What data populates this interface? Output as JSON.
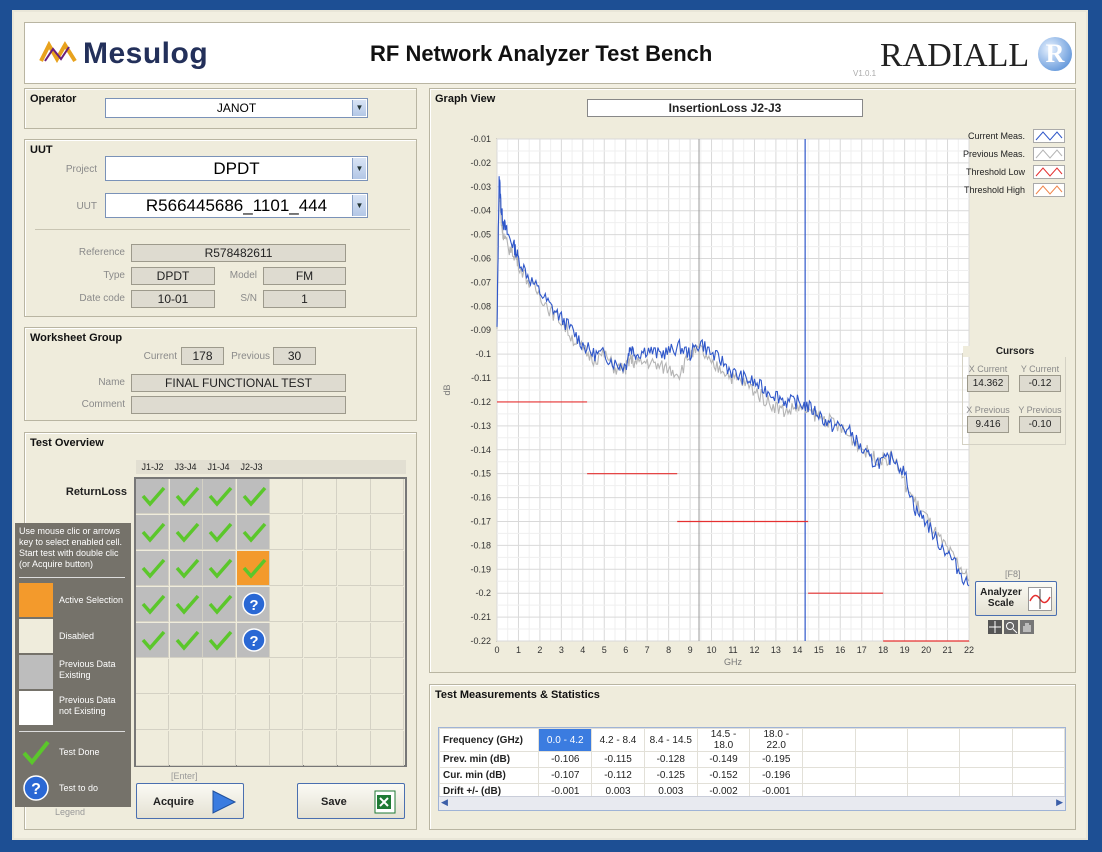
{
  "header": {
    "logo_text": "Mesulog",
    "title": "RF Network Analyzer Test Bench",
    "brand": "RADIALL",
    "brand_mark": "R",
    "version": "V1.0.1"
  },
  "operator": {
    "title": "Operator",
    "value": "JANOT"
  },
  "uut": {
    "title": "UUT",
    "project_label": "Project",
    "project_value": "DPDT",
    "uut_label": "UUT",
    "uut_value": "R566445686_1101_444",
    "reference_label": "Reference",
    "reference_value": "R578482611",
    "type_label": "Type",
    "type_value": "DPDT",
    "model_label": "Model",
    "model_value": "FM",
    "datecode_label": "Date code",
    "datecode_value": "10-01",
    "sn_label": "S/N",
    "sn_value": "1"
  },
  "worksheet": {
    "title": "Worksheet Group",
    "current_label": "Current",
    "current_value": "178",
    "previous_label": "Previous",
    "previous_value": "30",
    "name_label": "Name",
    "name_value": "FINAL FUNCTIONAL TEST",
    "comment_label": "Comment",
    "comment_value": ""
  },
  "overview": {
    "title": "Test Overview",
    "columns": [
      "J1-J2",
      "J3-J4",
      "J1-J4",
      "J2-J3"
    ],
    "row_label": "ReturnLoss",
    "help": "Use mouse clic or arrows key to select enabled cell. Start test with double clic (or Acquire button)",
    "legend": [
      "Active Selection",
      "Disabled",
      "Previous Data Existing",
      "Previous Data not Existing",
      "Test Done",
      "Test to do"
    ],
    "legend_label": "Legend",
    "acquire_hint": "[Enter]",
    "acquire_label": "Acquire",
    "save_label": "Save"
  },
  "graph": {
    "title": "Graph View",
    "name": "InsertionLoss J2-J3",
    "legend": [
      "Current Meas.",
      "Previous Meas.",
      "Threshold Low",
      "Threshold High"
    ],
    "cursors_title": "Cursors",
    "x_current_label": "X Current",
    "x_current": "14.362",
    "y_current_label": "Y Current",
    "y_current": "-0.12",
    "x_previous_label": "X Previous",
    "x_previous": "9.416",
    "y_previous_label": "Y Previous",
    "y_previous": "-0.10",
    "scale_hint": "[F8]",
    "scale_label": "Analyzer Scale",
    "colors": {
      "current": "#2f57c9",
      "previous": "#b5b5b5",
      "threshold": "#e53030",
      "cursor_x": "#2f57c9",
      "cursor_prev": "#9a9a9a"
    }
  },
  "chart_data": {
    "type": "line",
    "title": "InsertionLoss J2-J3",
    "xlabel": "GHz",
    "ylabel": "dB",
    "xlim": [
      0,
      22
    ],
    "ylim": [
      -0.22,
      -0.01
    ],
    "x_ticks": [
      0,
      1,
      2,
      3,
      4,
      5,
      6,
      7,
      8,
      9,
      10,
      11,
      12,
      13,
      14,
      15,
      16,
      17,
      18,
      19,
      20,
      21,
      22
    ],
    "y_ticks": [
      -0.01,
      -0.02,
      -0.03,
      -0.04,
      -0.05,
      -0.06,
      -0.07,
      -0.08,
      -0.09,
      -0.1,
      -0.11,
      -0.12,
      -0.13,
      -0.14,
      -0.15,
      -0.16,
      -0.17,
      -0.18,
      -0.19,
      -0.2,
      -0.21,
      -0.22
    ],
    "grid": true,
    "series": [
      {
        "name": "Current Meas.",
        "x": [
          0,
          0.1,
          0.2,
          0.3,
          0.5,
          0.8,
          1,
          1.5,
          2,
          2.5,
          3,
          3.5,
          4,
          4.5,
          5,
          5.5,
          6,
          6.2,
          6.5,
          7,
          7.5,
          8,
          8.5,
          9,
          9.5,
          10,
          10.5,
          11,
          11.5,
          12,
          12.5,
          13,
          13.5,
          14,
          14.5,
          15,
          15.5,
          16,
          16.5,
          17,
          17.5,
          18,
          18.5,
          19,
          19.5,
          20,
          20.5,
          21,
          21.5,
          22
        ],
        "y": [
          -0.09,
          -0.025,
          -0.04,
          -0.045,
          -0.05,
          -0.055,
          -0.06,
          -0.068,
          -0.074,
          -0.08,
          -0.085,
          -0.09,
          -0.096,
          -0.1,
          -0.1,
          -0.104,
          -0.105,
          -0.097,
          -0.1,
          -0.098,
          -0.1,
          -0.099,
          -0.097,
          -0.1,
          -0.095,
          -0.1,
          -0.103,
          -0.108,
          -0.11,
          -0.112,
          -0.115,
          -0.117,
          -0.12,
          -0.12,
          -0.122,
          -0.125,
          -0.13,
          -0.13,
          -0.133,
          -0.14,
          -0.145,
          -0.145,
          -0.143,
          -0.15,
          -0.165,
          -0.17,
          -0.178,
          -0.183,
          -0.19,
          -0.197
        ]
      },
      {
        "name": "Previous Meas.",
        "x": [
          0,
          0.1,
          0.2,
          0.3,
          0.5,
          0.8,
          1,
          1.5,
          2,
          2.5,
          3,
          3.5,
          4,
          4.5,
          5,
          5.5,
          6,
          6.2,
          6.5,
          7,
          7.5,
          8,
          8.5,
          9,
          9.5,
          10,
          10.5,
          11,
          11.5,
          12,
          12.5,
          13,
          13.5,
          14,
          14.5,
          15,
          15.5,
          16,
          16.5,
          17,
          17.5,
          18,
          18.5,
          19,
          19.5,
          20,
          20.5,
          21,
          21.5,
          22
        ],
        "y": [
          -0.09,
          -0.03,
          -0.045,
          -0.05,
          -0.055,
          -0.058,
          -0.062,
          -0.07,
          -0.075,
          -0.082,
          -0.086,
          -0.093,
          -0.098,
          -0.102,
          -0.1,
          -0.106,
          -0.106,
          -0.102,
          -0.104,
          -0.103,
          -0.105,
          -0.106,
          -0.108,
          -0.1,
          -0.098,
          -0.105,
          -0.106,
          -0.11,
          -0.112,
          -0.115,
          -0.119,
          -0.122,
          -0.124,
          -0.122,
          -0.124,
          -0.126,
          -0.128,
          -0.131,
          -0.135,
          -0.139,
          -0.143,
          -0.144,
          -0.143,
          -0.154,
          -0.162,
          -0.168,
          -0.176,
          -0.182,
          -0.188,
          -0.195
        ]
      },
      {
        "name": "Threshold Low",
        "segments": [
          [
            0,
            4.2,
            -0.12
          ],
          [
            4.2,
            8.4,
            -0.15
          ],
          [
            8.4,
            14.5,
            -0.17
          ],
          [
            14.5,
            18,
            -0.2
          ],
          [
            18,
            22,
            -0.22
          ]
        ]
      }
    ],
    "cursors": {
      "x_current": 14.362,
      "x_previous": 9.416
    }
  },
  "stats": {
    "title": "Test Measurements & Statistics",
    "rows": [
      [
        "Frequency (GHz)",
        "0.0 - 4.2",
        "4.2 - 8.4",
        "8.4 - 14.5",
        "14.5 - 18.0",
        "18.0 - 22.0"
      ],
      [
        "Prev. min (dB)",
        "-0.106",
        "-0.115",
        "-0.128",
        "-0.149",
        "-0.195"
      ],
      [
        "Cur. min (dB)",
        "-0.107",
        "-0.112",
        "-0.125",
        "-0.152",
        "-0.196"
      ],
      [
        "Drift +/- (dB)",
        "-0.001",
        "0.003",
        "0.003",
        "-0.002",
        "-0.001"
      ]
    ]
  }
}
